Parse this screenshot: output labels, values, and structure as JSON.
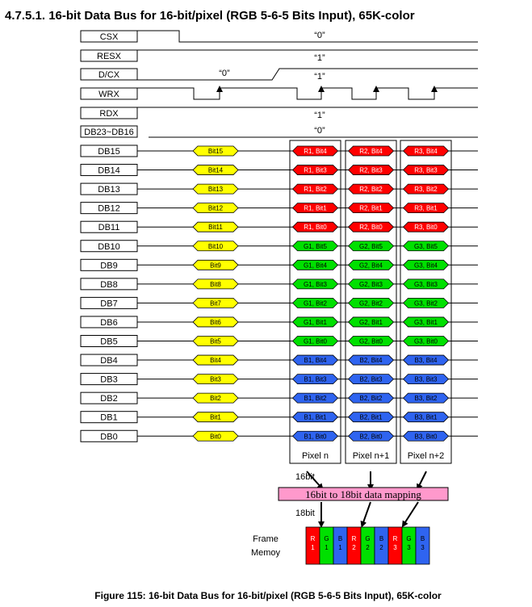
{
  "title": "4.7.5.1. 16-bit Data Bus for 16-bit/pixel (RGB 5-6-5 Bits Input), 65K-color",
  "caption": "Figure 115: 16-bit Data Bus for 16-bit/pixel (RGB 5-6-5 Bits Input), 65K-color",
  "control_signals": [
    {
      "name": "CSX",
      "value": "“0”"
    },
    {
      "name": "RESX",
      "value": "“1”"
    },
    {
      "name": "D/CX",
      "value_left": "“0”",
      "value": "“1”"
    },
    {
      "name": "WRX"
    },
    {
      "name": "RDX",
      "value": "“1”"
    },
    {
      "name": "DB23~DB16",
      "value": "“0”"
    }
  ],
  "data_lines": [
    {
      "name": "DB15",
      "bit": "Bit15",
      "p": [
        "R1, Bit4",
        "R2, Bit4",
        "R3, Bit4"
      ],
      "color": "red"
    },
    {
      "name": "DB14",
      "bit": "Bit14",
      "p": [
        "R1, Bit3",
        "R2, Bit3",
        "R3, Bit3"
      ],
      "color": "red"
    },
    {
      "name": "DB13",
      "bit": "Bit13",
      "p": [
        "R1, Bit2",
        "R2, Bit2",
        "R3, Bit2"
      ],
      "color": "red"
    },
    {
      "name": "DB12",
      "bit": "Bit12",
      "p": [
        "R1, Bit1",
        "R2, Bit1",
        "R3, Bit1"
      ],
      "color": "red"
    },
    {
      "name": "DB11",
      "bit": "Bit11",
      "p": [
        "R1, Bit0",
        "R2, Bit0",
        "R3, Bit0"
      ],
      "color": "red"
    },
    {
      "name": "DB10",
      "bit": "Bit10",
      "p": [
        "G1, Bit5",
        "G2, Bit5",
        "G3, Bit5"
      ],
      "color": "green"
    },
    {
      "name": "DB9",
      "bit": "Bit9",
      "p": [
        "G1, Bit4",
        "G2, Bit4",
        "G3, Bit4"
      ],
      "color": "green"
    },
    {
      "name": "DB8",
      "bit": "Bit8",
      "p": [
        "G1, Bit3",
        "G2, Bit3",
        "G3, Bit3"
      ],
      "color": "green"
    },
    {
      "name": "DB7",
      "bit": "Bit7",
      "p": [
        "G1, Bit2",
        "G2, Bit2",
        "G3, Bit2"
      ],
      "color": "green"
    },
    {
      "name": "DB6",
      "bit": "Bit6",
      "p": [
        "G1, Bit1",
        "G2, Bit1",
        "G3, Bit1"
      ],
      "color": "green"
    },
    {
      "name": "DB5",
      "bit": "Bit5",
      "p": [
        "G1, Bit0",
        "G2, Bit0",
        "G3, Bit0"
      ],
      "color": "green"
    },
    {
      "name": "DB4",
      "bit": "Bit4",
      "p": [
        "B1, Bit4",
        "B2, Bit4",
        "B3, Bit4"
      ],
      "color": "blue"
    },
    {
      "name": "DB3",
      "bit": "Bit3",
      "p": [
        "B1, Bit3",
        "B2, Bit3",
        "B3, Bit3"
      ],
      "color": "blue"
    },
    {
      "name": "DB2",
      "bit": "Bit2",
      "p": [
        "B1, Bit2",
        "B2, Bit2",
        "B3, Bit2"
      ],
      "color": "blue"
    },
    {
      "name": "DB1",
      "bit": "Bit1",
      "p": [
        "B1, Bit1",
        "B2, Bit1",
        "B3, Bit1"
      ],
      "color": "blue"
    },
    {
      "name": "DB0",
      "bit": "Bit0",
      "p": [
        "B1, Bit0",
        "B2, Bit0",
        "B3, Bit0"
      ],
      "color": "blue"
    }
  ],
  "pixel_labels": [
    "Pixel n",
    "Pixel n+1",
    "Pixel n+2"
  ],
  "label_16bit": "16bit",
  "label_18bit": "18bit",
  "mapping_label": "16bit to 18bit data mapping",
  "frame_memory_label": [
    "Frame",
    "Memoy"
  ],
  "frame_cells": [
    {
      "ch": "R",
      "n": "1",
      "color": "red"
    },
    {
      "ch": "G",
      "n": "1",
      "color": "green"
    },
    {
      "ch": "B",
      "n": "1",
      "color": "blue"
    },
    {
      "ch": "R",
      "n": "2",
      "color": "red"
    },
    {
      "ch": "G",
      "n": "2",
      "color": "green"
    },
    {
      "ch": "B",
      "n": "2",
      "color": "blue"
    },
    {
      "ch": "R",
      "n": "3",
      "color": "red"
    },
    {
      "ch": "G",
      "n": "3",
      "color": "green"
    },
    {
      "ch": "B",
      "n": "3",
      "color": "blue"
    }
  ],
  "colors": {
    "red": "#ff0000",
    "green": "#00e000",
    "blue": "#2f64f0",
    "yellow": "#ffff00",
    "pink": "#ff99cc"
  }
}
